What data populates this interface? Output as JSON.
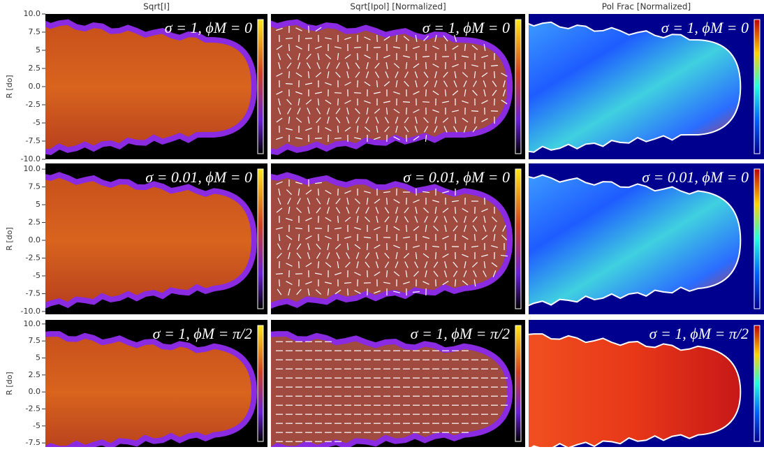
{
  "column_titles": [
    "Sqrt[I]",
    "Sqrt[Ipol] [Normalized]",
    "Pol Frac [Normalized]"
  ],
  "rows": [
    {
      "ylabel": "R [do]",
      "ylim": [
        -10,
        10
      ],
      "yticks": [
        {
          "value": 10,
          "label": "10.0"
        },
        7.5,
        5,
        2.5,
        {
          "value": 0,
          "label": "0.0"
        },
        -2.5,
        -5,
        -7.5,
        {
          "value": -10,
          "label": "-10.0"
        }
      ],
      "annotations": [
        "σ = 1, ϕM = 0",
        "σ = 1, ϕM = 0",
        "σ = 1, ϕM = 0"
      ]
    },
    {
      "ylabel": "R [do]",
      "ylim": [
        -10.4,
        10.8
      ],
      "yticks": [
        {
          "value": 10,
          "label": "10.0"
        },
        7.5,
        5,
        2.5,
        {
          "value": 0,
          "label": "0.0"
        },
        -2.5,
        -5,
        -7.5,
        {
          "value": -10,
          "label": "-10.0"
        }
      ],
      "annotations": [
        "σ = 0.01, ϕM = 0",
        "σ = 0.01, ϕM = 0",
        "σ = 0.01, ϕM = 0"
      ]
    },
    {
      "ylabel": "R [do]",
      "ylim": [
        -8.1,
        10.6
      ],
      "yticks": [
        {
          "value": 10,
          "label": "10.0"
        },
        7.5,
        5,
        2.5,
        {
          "value": 0,
          "label": "0.0"
        },
        -2.5,
        -5,
        -7.5
      ],
      "annotations": [
        "σ = 1, ϕM = π/2",
        "σ = 1, ϕM = π/2",
        "σ = 1, ϕM = π/2"
      ]
    }
  ]
}
